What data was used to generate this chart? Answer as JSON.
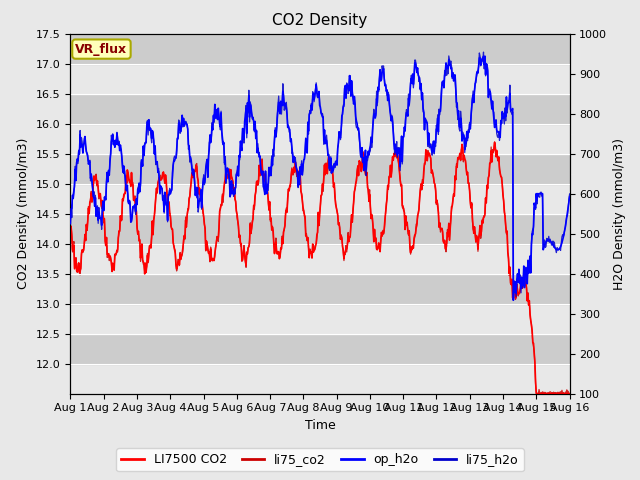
{
  "title": "CO2 Density",
  "xlabel": "Time",
  "ylabel_left": "CO2 Density (mmol/m3)",
  "ylabel_right": "H2O Density (mmol/m3)",
  "ylim_left": [
    11.5,
    17.5
  ],
  "ylim_right": [
    100,
    1000
  ],
  "xlim": [
    0,
    15
  ],
  "yticks_left": [
    12.0,
    12.5,
    13.0,
    13.5,
    14.0,
    14.5,
    15.0,
    15.5,
    16.0,
    16.5,
    17.0,
    17.5
  ],
  "yticks_right": [
    100,
    200,
    300,
    400,
    500,
    600,
    700,
    800,
    900,
    1000
  ],
  "x_tick_labels": [
    "Aug 1",
    "Aug 2",
    "Aug 3",
    "Aug 4",
    "Aug 5",
    "Aug 6",
    "Aug 7",
    "Aug 8",
    "Aug 9",
    "Aug 10",
    "Aug 11",
    "Aug 12",
    "Aug 13",
    "Aug 14",
    "Aug 15",
    "Aug 16"
  ],
  "vr_flux_label": "VR_flux",
  "legend_labels": [
    "LI7500 CO2",
    "li75_co2",
    "op_h2o",
    "li75_h2o"
  ],
  "color_red": "#ff0000",
  "color_darkred": "#cc0000",
  "color_blue": "#0000ff",
  "color_darkblue": "#0000cc",
  "bg_fig": "#e8e8e8",
  "bg_plot": "#d8d8d8",
  "band_light": "#e8e8e8",
  "band_dark": "#cccccc",
  "title_fontsize": 11,
  "axis_fontsize": 9,
  "tick_fontsize": 8,
  "legend_fontsize": 9
}
